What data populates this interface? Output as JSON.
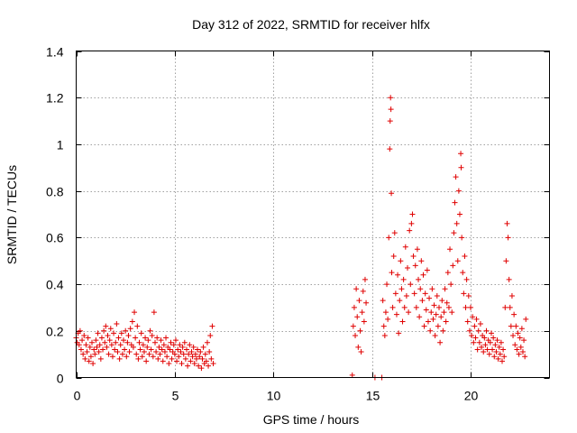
{
  "chart_data": {
    "type": "scatter",
    "title": "Day 312 of 2022, SRMTID for receiver hlfx",
    "xlabel": "GPS time / hours",
    "ylabel": "SRMTID / TECUs",
    "xlim": [
      0,
      24
    ],
    "ylim": [
      0,
      1.4
    ],
    "xticks": [
      0,
      5,
      10,
      15,
      20
    ],
    "xtick_labels": [
      "0",
      "5",
      "10",
      "15",
      "20"
    ],
    "yticks": [
      0,
      0.2,
      0.4,
      0.6,
      0.8,
      1.0,
      1.2,
      1.4
    ],
    "ytick_labels": [
      "0",
      "0.2",
      "0.4",
      "0.6",
      "0.8",
      "1",
      "1.2",
      "1.4"
    ],
    "grid": true,
    "marker": "+",
    "color": "#e00000",
    "series": [
      {
        "name": "hlfx",
        "points": [
          [
            0.0,
            0.17
          ],
          [
            0.05,
            0.15
          ],
          [
            0.1,
            0.19
          ],
          [
            0.15,
            0.14
          ],
          [
            0.2,
            0.2
          ],
          [
            0.25,
            0.12
          ],
          [
            0.3,
            0.16
          ],
          [
            0.35,
            0.1
          ],
          [
            0.4,
            0.18
          ],
          [
            0.45,
            0.08
          ],
          [
            0.5,
            0.14
          ],
          [
            0.55,
            0.11
          ],
          [
            0.6,
            0.17
          ],
          [
            0.65,
            0.07
          ],
          [
            0.7,
            0.13
          ],
          [
            0.75,
            0.09
          ],
          [
            0.8,
            0.15
          ],
          [
            0.85,
            0.06
          ],
          [
            0.9,
            0.12
          ],
          [
            0.95,
            0.1
          ],
          [
            1.0,
            0.16
          ],
          [
            1.05,
            0.13
          ],
          [
            1.1,
            0.19
          ],
          [
            1.15,
            0.11
          ],
          [
            1.2,
            0.14
          ],
          [
            1.25,
            0.08
          ],
          [
            1.3,
            0.17
          ],
          [
            1.35,
            0.12
          ],
          [
            1.4,
            0.2
          ],
          [
            1.45,
            0.15
          ],
          [
            1.5,
            0.22
          ],
          [
            1.55,
            0.13
          ],
          [
            1.6,
            0.18
          ],
          [
            1.65,
            0.1
          ],
          [
            1.7,
            0.16
          ],
          [
            1.75,
            0.21
          ],
          [
            1.8,
            0.14
          ],
          [
            1.85,
            0.09
          ],
          [
            1.9,
            0.19
          ],
          [
            1.95,
            0.12
          ],
          [
            2.0,
            0.15
          ],
          [
            2.05,
            0.23
          ],
          [
            2.1,
            0.11
          ],
          [
            2.15,
            0.17
          ],
          [
            2.2,
            0.08
          ],
          [
            2.25,
            0.14
          ],
          [
            2.3,
            0.19
          ],
          [
            2.35,
            0.1
          ],
          [
            2.4,
            0.16
          ],
          [
            2.45,
            0.12
          ],
          [
            2.5,
            0.2
          ],
          [
            2.55,
            0.09
          ],
          [
            2.6,
            0.15
          ],
          [
            2.65,
            0.18
          ],
          [
            2.7,
            0.11
          ],
          [
            2.75,
            0.21
          ],
          [
            2.8,
            0.14
          ],
          [
            2.85,
            0.24
          ],
          [
            2.9,
            0.13
          ],
          [
            2.95,
            0.28
          ],
          [
            3.0,
            0.17
          ],
          [
            3.05,
            0.1
          ],
          [
            3.1,
            0.22
          ],
          [
            3.15,
            0.08
          ],
          [
            3.2,
            0.15
          ],
          [
            3.25,
            0.12
          ],
          [
            3.3,
            0.19
          ],
          [
            3.35,
            0.09
          ],
          [
            3.4,
            0.14
          ],
          [
            3.45,
            0.11
          ],
          [
            3.5,
            0.17
          ],
          [
            3.55,
            0.07
          ],
          [
            3.6,
            0.13
          ],
          [
            3.65,
            0.16
          ],
          [
            3.7,
            0.1
          ],
          [
            3.75,
            0.2
          ],
          [
            3.8,
            0.12
          ],
          [
            3.85,
            0.18
          ],
          [
            3.9,
            0.09
          ],
          [
            3.95,
            0.28
          ],
          [
            4.0,
            0.15
          ],
          [
            4.05,
            0.11
          ],
          [
            4.1,
            0.17
          ],
          [
            4.15,
            0.08
          ],
          [
            4.2,
            0.13
          ],
          [
            4.25,
            0.1
          ],
          [
            4.3,
            0.16
          ],
          [
            4.35,
            0.12
          ],
          [
            4.4,
            0.07
          ],
          [
            4.45,
            0.14
          ],
          [
            4.5,
            0.11
          ],
          [
            4.55,
            0.17
          ],
          [
            4.6,
            0.09
          ],
          [
            4.65,
            0.13
          ],
          [
            4.7,
            0.06
          ],
          [
            4.75,
            0.12
          ],
          [
            4.8,
            0.15
          ],
          [
            4.85,
            0.08
          ],
          [
            4.9,
            0.11
          ],
          [
            4.95,
            0.14
          ],
          [
            5.0,
            0.1
          ],
          [
            5.05,
            0.16
          ],
          [
            5.1,
            0.07
          ],
          [
            5.15,
            0.12
          ],
          [
            5.2,
            0.09
          ],
          [
            5.25,
            0.14
          ],
          [
            5.3,
            0.11
          ],
          [
            5.35,
            0.06
          ],
          [
            5.4,
            0.13
          ],
          [
            5.45,
            0.1
          ],
          [
            5.5,
            0.15
          ],
          [
            5.55,
            0.08
          ],
          [
            5.6,
            0.12
          ],
          [
            5.65,
            0.05
          ],
          [
            5.7,
            0.1
          ],
          [
            5.75,
            0.14
          ],
          [
            5.8,
            0.07
          ],
          [
            5.85,
            0.11
          ],
          [
            5.9,
            0.09
          ],
          [
            5.95,
            0.13
          ],
          [
            6.0,
            0.06
          ],
          [
            6.05,
            0.1
          ],
          [
            6.1,
            0.08
          ],
          [
            6.15,
            0.12
          ],
          [
            6.2,
            0.05
          ],
          [
            6.25,
            0.09
          ],
          [
            6.3,
            0.11
          ],
          [
            6.35,
            0.04
          ],
          [
            6.4,
            0.08
          ],
          [
            6.45,
            0.13
          ],
          [
            6.5,
            0.06
          ],
          [
            6.55,
            0.1
          ],
          [
            6.6,
            0.07
          ],
          [
            6.65,
            0.15
          ],
          [
            6.7,
            0.05
          ],
          [
            6.75,
            0.11
          ],
          [
            6.8,
            0.18
          ],
          [
            6.85,
            0.08
          ],
          [
            6.9,
            0.22
          ],
          [
            6.95,
            0.06
          ],
          [
            14.0,
            0.01
          ],
          [
            14.05,
            0.22
          ],
          [
            14.1,
            0.3
          ],
          [
            14.15,
            0.18
          ],
          [
            14.2,
            0.38
          ],
          [
            14.25,
            0.26
          ],
          [
            14.3,
            0.13
          ],
          [
            14.35,
            0.33
          ],
          [
            14.4,
            0.2
          ],
          [
            14.45,
            0.11
          ],
          [
            14.5,
            0.28
          ],
          [
            14.55,
            0.37
          ],
          [
            14.6,
            0.24
          ],
          [
            14.65,
            0.42
          ],
          [
            14.7,
            0.32
          ],
          [
            15.15,
            0.0
          ],
          [
            15.5,
            0.0
          ],
          [
            15.55,
            0.33
          ],
          [
            15.6,
            0.22
          ],
          [
            15.65,
            0.18
          ],
          [
            15.7,
            0.28
          ],
          [
            15.75,
            0.4
          ],
          [
            15.8,
            0.25
          ],
          [
            15.85,
            0.6
          ],
          [
            15.9,
            0.98
          ],
          [
            15.92,
            1.1
          ],
          [
            15.94,
            1.2
          ],
          [
            15.96,
            1.15
          ],
          [
            15.98,
            0.79
          ],
          [
            16.0,
            0.45
          ],
          [
            16.05,
            0.3
          ],
          [
            16.1,
            0.52
          ],
          [
            16.15,
            0.62
          ],
          [
            16.2,
            0.36
          ],
          [
            16.25,
            0.27
          ],
          [
            16.3,
            0.44
          ],
          [
            16.35,
            0.19
          ],
          [
            16.4,
            0.33
          ],
          [
            16.45,
            0.5
          ],
          [
            16.5,
            0.38
          ],
          [
            16.55,
            0.24
          ],
          [
            16.6,
            0.42
          ],
          [
            16.65,
            0.3
          ],
          [
            16.7,
            0.56
          ],
          [
            16.75,
            0.35
          ],
          [
            16.8,
            0.47
          ],
          [
            16.85,
            0.28
          ],
          [
            16.9,
            0.63
          ],
          [
            16.95,
            0.4
          ],
          [
            17.0,
            0.66
          ],
          [
            17.05,
            0.7
          ],
          [
            17.1,
            0.52
          ],
          [
            17.15,
            0.36
          ],
          [
            17.2,
            0.48
          ],
          [
            17.25,
            0.3
          ],
          [
            17.3,
            0.55
          ],
          [
            17.35,
            0.42
          ],
          [
            17.4,
            0.26
          ],
          [
            17.45,
            0.38
          ],
          [
            17.5,
            0.5
          ],
          [
            17.55,
            0.33
          ],
          [
            17.6,
            0.44
          ],
          [
            17.65,
            0.22
          ],
          [
            17.7,
            0.36
          ],
          [
            17.75,
            0.29
          ],
          [
            17.8,
            0.46
          ],
          [
            17.85,
            0.24
          ],
          [
            17.9,
            0.34
          ],
          [
            17.95,
            0.2
          ],
          [
            18.0,
            0.28
          ],
          [
            18.05,
            0.38
          ],
          [
            18.1,
            0.25
          ],
          [
            18.15,
            0.31
          ],
          [
            18.2,
            0.18
          ],
          [
            18.25,
            0.27
          ],
          [
            18.3,
            0.35
          ],
          [
            18.35,
            0.22
          ],
          [
            18.4,
            0.3
          ],
          [
            18.45,
            0.15
          ],
          [
            18.5,
            0.26
          ],
          [
            18.55,
            0.33
          ],
          [
            18.6,
            0.2
          ],
          [
            18.65,
            0.28
          ],
          [
            18.7,
            0.38
          ],
          [
            18.75,
            0.24
          ],
          [
            18.8,
            0.32
          ],
          [
            18.85,
            0.45
          ],
          [
            18.9,
            0.3
          ],
          [
            18.95,
            0.55
          ],
          [
            19.0,
            0.4
          ],
          [
            19.05,
            0.28
          ],
          [
            19.1,
            0.48
          ],
          [
            19.15,
            0.62
          ],
          [
            19.2,
            0.75
          ],
          [
            19.25,
            0.86
          ],
          [
            19.3,
            0.66
          ],
          [
            19.35,
            0.5
          ],
          [
            19.4,
            0.8
          ],
          [
            19.45,
            0.7
          ],
          [
            19.5,
            0.96
          ],
          [
            19.52,
            0.9
          ],
          [
            19.55,
            0.6
          ],
          [
            19.6,
            0.45
          ],
          [
            19.65,
            0.36
          ],
          [
            19.7,
            0.52
          ],
          [
            19.75,
            0.3
          ],
          [
            19.8,
            0.42
          ],
          [
            19.85,
            0.24
          ],
          [
            19.9,
            0.35
          ],
          [
            19.95,
            0.2
          ],
          [
            20.0,
            0.3
          ],
          [
            20.05,
            0.18
          ],
          [
            20.1,
            0.26
          ],
          [
            20.15,
            0.15
          ],
          [
            20.2,
            0.22
          ],
          [
            20.25,
            0.17
          ],
          [
            20.3,
            0.25
          ],
          [
            20.35,
            0.12
          ],
          [
            20.4,
            0.2
          ],
          [
            20.45,
            0.15
          ],
          [
            20.5,
            0.23
          ],
          [
            20.55,
            0.13
          ],
          [
            20.6,
            0.18
          ],
          [
            20.65,
            0.11
          ],
          [
            20.7,
            0.17
          ],
          [
            20.75,
            0.14
          ],
          [
            20.8,
            0.2
          ],
          [
            20.85,
            0.12
          ],
          [
            20.9,
            0.16
          ],
          [
            20.95,
            0.1
          ],
          [
            21.0,
            0.15
          ],
          [
            21.05,
            0.19
          ],
          [
            21.1,
            0.12
          ],
          [
            21.15,
            0.17
          ],
          [
            21.2,
            0.09
          ],
          [
            21.25,
            0.14
          ],
          [
            21.3,
            0.11
          ],
          [
            21.35,
            0.16
          ],
          [
            21.4,
            0.08
          ],
          [
            21.45,
            0.13
          ],
          [
            21.5,
            0.1
          ],
          [
            21.55,
            0.15
          ],
          [
            21.6,
            0.07
          ],
          [
            21.65,
            0.12
          ],
          [
            21.7,
            0.09
          ],
          [
            21.75,
            0.3
          ],
          [
            21.8,
            0.5
          ],
          [
            21.85,
            0.66
          ],
          [
            21.9,
            0.6
          ],
          [
            21.95,
            0.42
          ],
          [
            22.0,
            0.3
          ],
          [
            22.05,
            0.22
          ],
          [
            22.1,
            0.35
          ],
          [
            22.15,
            0.18
          ],
          [
            22.2,
            0.27
          ],
          [
            22.25,
            0.14
          ],
          [
            22.3,
            0.22
          ],
          [
            22.35,
            0.12
          ],
          [
            22.4,
            0.19
          ],
          [
            22.45,
            0.1
          ],
          [
            22.5,
            0.17
          ],
          [
            22.55,
            0.13
          ],
          [
            22.6,
            0.21
          ],
          [
            22.65,
            0.11
          ],
          [
            22.7,
            0.16
          ],
          [
            22.75,
            0.09
          ],
          [
            22.8,
            0.25
          ]
        ]
      }
    ]
  }
}
